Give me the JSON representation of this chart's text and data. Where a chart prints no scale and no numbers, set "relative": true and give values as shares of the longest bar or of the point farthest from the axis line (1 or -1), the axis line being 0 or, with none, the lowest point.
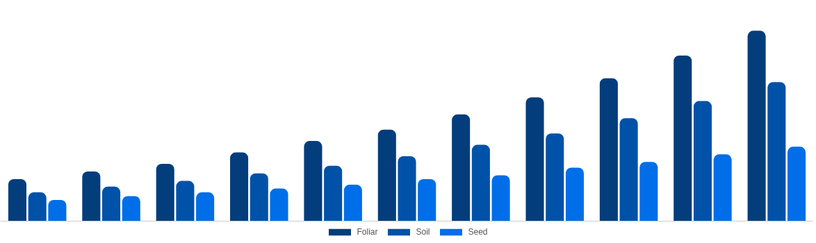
{
  "chart_data": {
    "type": "bar",
    "relative": true,
    "legend": "bottom",
    "categories": [
      null,
      null,
      null,
      null,
      null,
      null,
      null,
      null,
      null,
      null,
      null
    ],
    "series": [
      {
        "name": "Foliar",
        "color": "#033d7c",
        "values": [
          0.22,
          0.26,
          0.3,
          0.36,
          0.42,
          0.48,
          0.56,
          0.65,
          0.75,
          0.87,
          1
        ]
      },
      {
        "name": "Soil",
        "color": "#0052a8",
        "values": [
          0.15,
          0.18,
          0.21,
          0.25,
          0.29,
          0.34,
          0.4,
          0.46,
          0.54,
          0.63,
          0.73
        ]
      },
      {
        "name": "Seed",
        "color": "#006ee8",
        "values": [
          0.11,
          0.13,
          0.15,
          0.17,
          0.19,
          0.22,
          0.24,
          0.28,
          0.31,
          0.35,
          0.39
        ]
      }
    ]
  }
}
